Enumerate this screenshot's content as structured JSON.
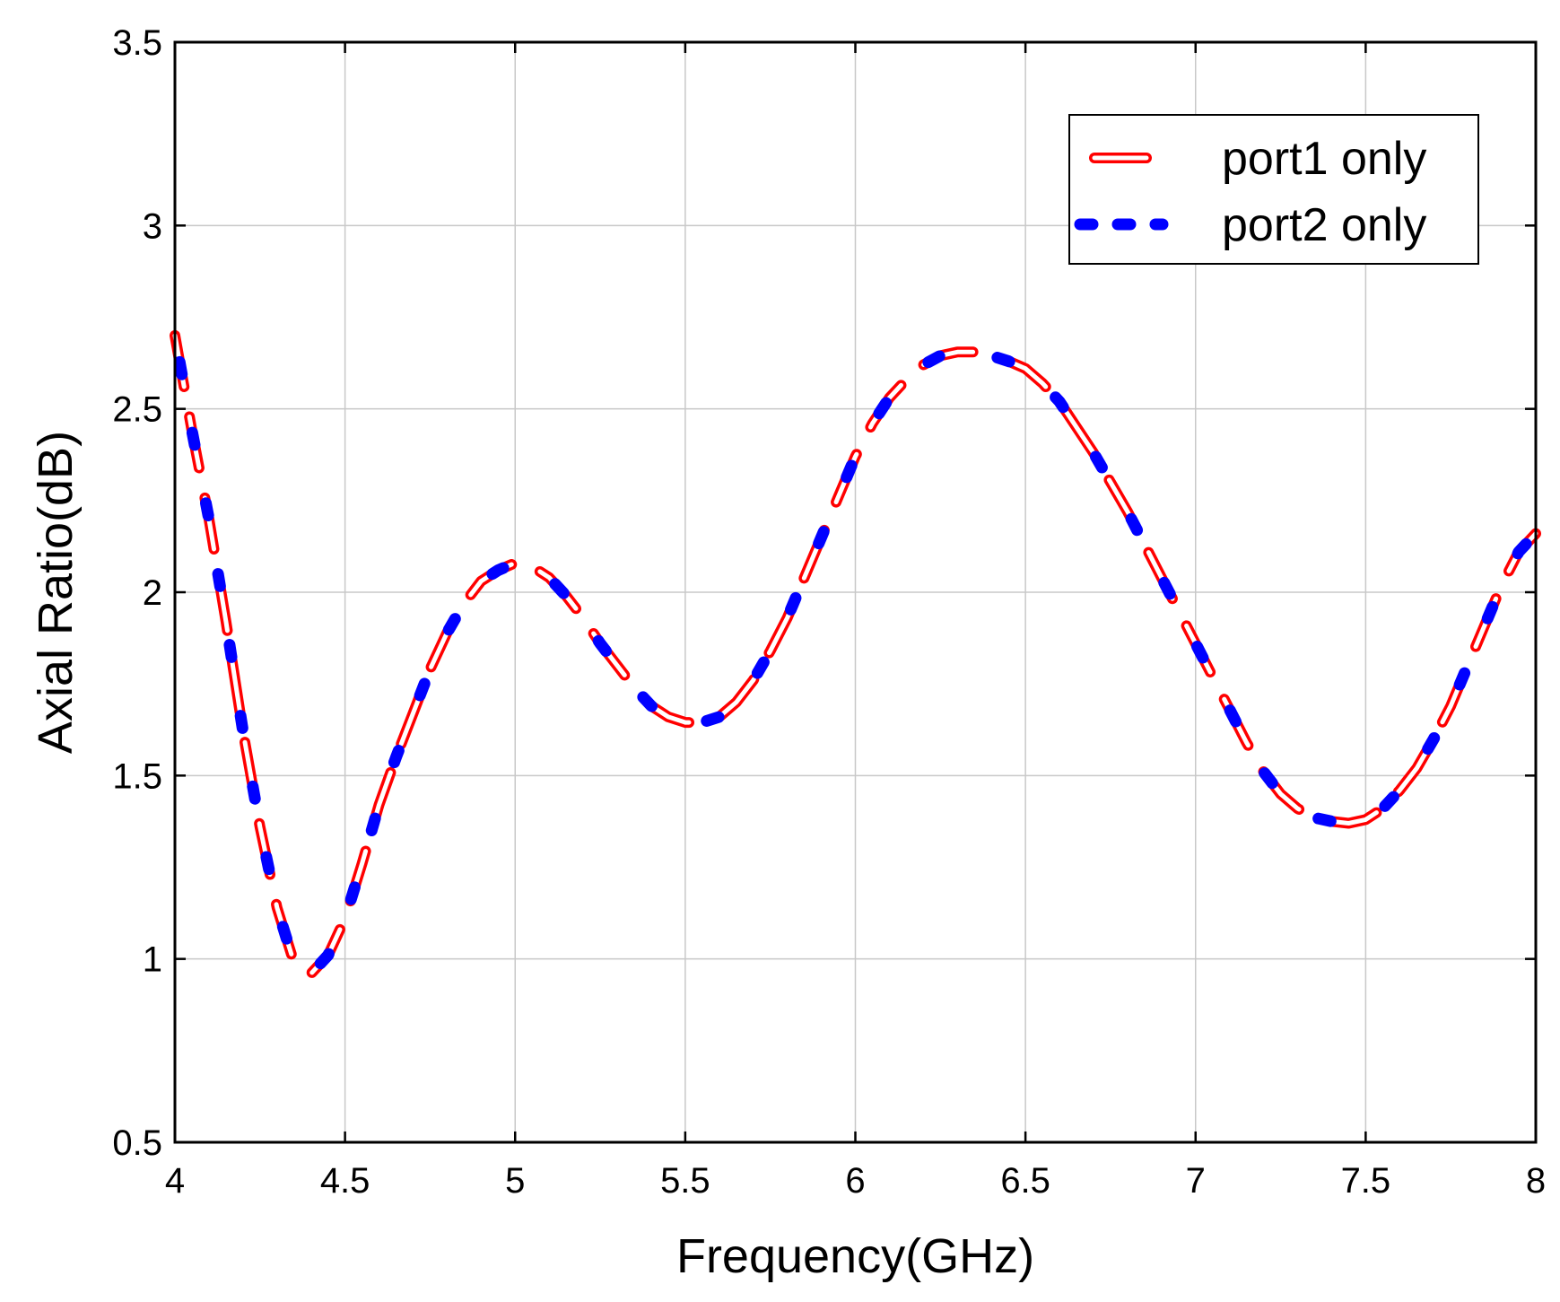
{
  "chart_data": {
    "type": "line",
    "title": "",
    "xlabel": "Frequency(GHz)",
    "ylabel": "Axial Ratio(dB)",
    "xlim": [
      4,
      8
    ],
    "ylim": [
      0.5,
      3.5
    ],
    "xticks": [
      "4",
      "4.5",
      "5",
      "5.5",
      "6",
      "6.5",
      "7",
      "7.5",
      "8"
    ],
    "yticks": [
      "0.5",
      "1",
      "1.5",
      "2",
      "2.5",
      "3",
      "3.5"
    ],
    "grid": true,
    "legend_position": "top-right",
    "series": [
      {
        "name": "port1 only",
        "color": "#ff0000",
        "style": "hollow-dashed",
        "x": [
          4.0,
          4.05,
          4.1,
          4.15,
          4.2,
          4.25,
          4.3,
          4.35,
          4.4,
          4.45,
          4.5,
          4.55,
          4.6,
          4.65,
          4.7,
          4.75,
          4.8,
          4.85,
          4.9,
          4.95,
          5.0,
          5.05,
          5.1,
          5.15,
          5.2,
          5.25,
          5.3,
          5.35,
          5.4,
          5.45,
          5.5,
          5.55,
          5.6,
          5.65,
          5.7,
          5.75,
          5.8,
          5.85,
          5.9,
          5.95,
          6.0,
          6.05,
          6.1,
          6.15,
          6.2,
          6.25,
          6.3,
          6.35,
          6.4,
          6.45,
          6.5,
          6.55,
          6.6,
          6.65,
          6.7,
          6.75,
          6.8,
          6.85,
          6.9,
          6.95,
          7.0,
          7.05,
          7.1,
          7.15,
          7.2,
          7.25,
          7.3,
          7.35,
          7.4,
          7.45,
          7.5,
          7.55,
          7.6,
          7.65,
          7.7,
          7.75,
          7.8,
          7.85,
          7.9,
          7.95,
          8.0
        ],
        "values": [
          2.7,
          2.44,
          2.2,
          1.92,
          1.62,
          1.36,
          1.14,
          0.99,
          0.96,
          1.01,
          1.11,
          1.26,
          1.42,
          1.55,
          1.67,
          1.79,
          1.89,
          1.97,
          2.03,
          2.06,
          2.08,
          2.07,
          2.04,
          1.99,
          1.93,
          1.86,
          1.8,
          1.74,
          1.69,
          1.66,
          1.645,
          1.645,
          1.66,
          1.7,
          1.76,
          1.84,
          1.93,
          2.04,
          2.15,
          2.26,
          2.37,
          2.46,
          2.53,
          2.58,
          2.62,
          2.645,
          2.655,
          2.655,
          2.645,
          2.63,
          2.61,
          2.57,
          2.52,
          2.45,
          2.38,
          2.3,
          2.22,
          2.13,
          2.04,
          1.95,
          1.86,
          1.77,
          1.68,
          1.59,
          1.51,
          1.45,
          1.41,
          1.385,
          1.375,
          1.37,
          1.38,
          1.41,
          1.46,
          1.52,
          1.6,
          1.69,
          1.8,
          1.91,
          2.02,
          2.11,
          2.16
        ]
      },
      {
        "name": "port2 only",
        "color": "#0000ff",
        "style": "dashed",
        "x": [
          4.0,
          4.05,
          4.1,
          4.15,
          4.2,
          4.25,
          4.3,
          4.35,
          4.4,
          4.45,
          4.5,
          4.55,
          4.6,
          4.65,
          4.7,
          4.75,
          4.8,
          4.85,
          4.9,
          4.95,
          5.0,
          5.05,
          5.1,
          5.15,
          5.2,
          5.25,
          5.3,
          5.35,
          5.4,
          5.45,
          5.5,
          5.55,
          5.6,
          5.65,
          5.7,
          5.75,
          5.8,
          5.85,
          5.9,
          5.95,
          6.0,
          6.05,
          6.1,
          6.15,
          6.2,
          6.25,
          6.3,
          6.35,
          6.4,
          6.45,
          6.5,
          6.55,
          6.6,
          6.65,
          6.7,
          6.75,
          6.8,
          6.85,
          6.9,
          6.95,
          7.0,
          7.05,
          7.1,
          7.15,
          7.2,
          7.25,
          7.3,
          7.35,
          7.4,
          7.45,
          7.5,
          7.55,
          7.6,
          7.65,
          7.7,
          7.75,
          7.8,
          7.85,
          7.9,
          7.95,
          8.0
        ],
        "values": [
          2.7,
          2.44,
          2.2,
          1.92,
          1.62,
          1.36,
          1.14,
          0.99,
          0.96,
          1.01,
          1.11,
          1.26,
          1.42,
          1.55,
          1.67,
          1.79,
          1.89,
          1.97,
          2.03,
          2.06,
          2.08,
          2.07,
          2.04,
          1.99,
          1.93,
          1.86,
          1.8,
          1.74,
          1.69,
          1.66,
          1.645,
          1.645,
          1.66,
          1.7,
          1.76,
          1.84,
          1.93,
          2.04,
          2.15,
          2.26,
          2.37,
          2.46,
          2.53,
          2.58,
          2.62,
          2.645,
          2.655,
          2.655,
          2.645,
          2.63,
          2.61,
          2.57,
          2.52,
          2.45,
          2.38,
          2.3,
          2.22,
          2.13,
          2.04,
          1.95,
          1.86,
          1.77,
          1.68,
          1.59,
          1.51,
          1.45,
          1.41,
          1.385,
          1.375,
          1.37,
          1.38,
          1.41,
          1.46,
          1.52,
          1.6,
          1.69,
          1.8,
          1.91,
          2.02,
          2.11,
          2.16
        ]
      }
    ]
  }
}
